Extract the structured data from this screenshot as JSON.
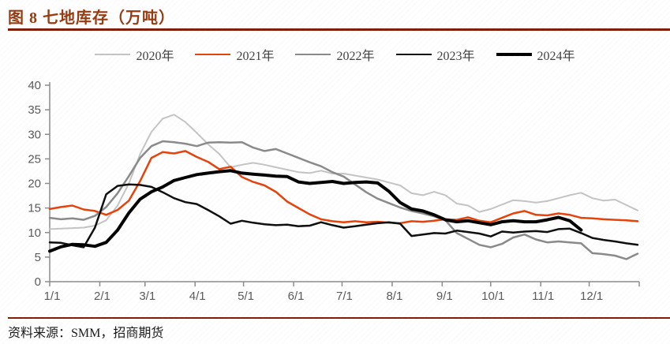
{
  "header": {
    "title": "图 8 七地库存（万吨）"
  },
  "footer": {
    "source_label": "资料来源：SMM，招商期货"
  },
  "colors": {
    "title_text": "#963a10",
    "rule": "#7f1d02",
    "axis": "#8c8c8c",
    "axis_label": "#595959",
    "series_2020": "#c4c4c4",
    "series_2021": "#e64209",
    "series_2022": "#8a8a8a",
    "series_2023": "#0d0d0d",
    "series_2024": "#000000"
  },
  "chart_data": {
    "type": "line",
    "title": "图 8 七地库存（万吨）",
    "xlabel": "",
    "ylabel": "",
    "ylim": [
      0,
      40
    ],
    "y_ticks": [
      0,
      5,
      10,
      15,
      20,
      25,
      30,
      35,
      40
    ],
    "grid": false,
    "legend_position": "top",
    "x_tick_labels": [
      "1/1",
      "2/1",
      "3/1",
      "4/1",
      "5/1",
      "6/1",
      "7/1",
      "8/1",
      "9/1",
      "10/1",
      "11/1",
      "12/1"
    ],
    "x_tick_days": [
      0,
      31,
      59,
      90,
      120,
      151,
      181,
      212,
      243,
      273,
      304,
      334
    ],
    "x_weekly_dates": [
      "1/1",
      "1/8",
      "1/15",
      "1/22",
      "1/29",
      "2/5",
      "2/12",
      "2/19",
      "2/26",
      "3/5",
      "3/12",
      "3/19",
      "3/26",
      "4/2",
      "4/9",
      "4/16",
      "4/23",
      "4/30",
      "5/7",
      "5/14",
      "5/21",
      "5/28",
      "6/4",
      "6/11",
      "6/18",
      "6/25",
      "7/2",
      "7/9",
      "7/16",
      "7/23",
      "7/30",
      "8/6",
      "8/13",
      "8/20",
      "8/27",
      "9/3",
      "9/10",
      "9/17",
      "9/24",
      "10/1",
      "10/8",
      "10/15",
      "10/22",
      "10/29",
      "11/5",
      "11/12",
      "11/19",
      "11/26",
      "12/3",
      "12/10",
      "12/17",
      "12/24",
      "12/31"
    ],
    "series": [
      {
        "name": "2020年",
        "color": "#c4c4c4",
        "line_width": 2,
        "values": [
          10.7,
          10.8,
          10.9,
          11.0,
          11.4,
          12.5,
          15.5,
          20.0,
          26.0,
          30.5,
          33.2,
          34.0,
          32.5,
          30.3,
          28.0,
          26.0,
          23.3,
          23.8,
          24.2,
          23.8,
          23.3,
          22.8,
          22.3,
          22.1,
          22.6,
          22.0,
          22.0,
          21.6,
          21.2,
          20.8,
          20.2,
          19.6,
          18.0,
          17.6,
          18.3,
          17.6,
          15.9,
          15.5,
          14.2,
          14.8,
          15.7,
          16.6,
          16.4,
          16.1,
          16.4,
          17.0,
          17.6,
          18.1,
          17.0,
          16.5,
          16.7,
          15.6,
          14.5
        ]
      },
      {
        "name": "2021年",
        "color": "#e64209",
        "line_width": 2.5,
        "values": [
          14.8,
          15.2,
          15.5,
          14.7,
          14.4,
          13.6,
          14.6,
          16.5,
          20.5,
          25.2,
          26.4,
          26.1,
          26.6,
          25.4,
          24.4,
          22.9,
          23.4,
          21.3,
          20.3,
          19.6,
          18.3,
          16.3,
          15.0,
          13.7,
          12.7,
          12.3,
          12.1,
          12.3,
          12.1,
          12.2,
          12.0,
          11.9,
          12.3,
          12.2,
          12.4,
          12.7,
          12.6,
          13.1,
          12.4,
          12.1,
          13.0,
          13.9,
          14.4,
          13.6,
          13.5,
          13.9,
          13.6,
          13.0,
          12.9,
          12.7,
          12.6,
          12.5,
          12.3
        ]
      },
      {
        "name": "2022年",
        "color": "#8a8a8a",
        "line_width": 2.5,
        "values": [
          13.0,
          12.7,
          12.9,
          12.6,
          13.4,
          15.2,
          18.0,
          21.5,
          25.2,
          27.6,
          28.6,
          28.4,
          28.1,
          27.6,
          28.3,
          28.4,
          28.3,
          28.4,
          27.3,
          26.6,
          27.0,
          26.1,
          25.2,
          24.3,
          23.5,
          22.3,
          21.4,
          19.8,
          18.2,
          16.9,
          16.0,
          15.1,
          14.4,
          13.9,
          13.3,
          12.5,
          9.9,
          8.7,
          7.5,
          7.0,
          7.7,
          9.0,
          9.6,
          8.6,
          8.0,
          8.2,
          8.0,
          7.8,
          5.8,
          5.6,
          5.3,
          4.6,
          5.7
        ]
      },
      {
        "name": "2023年",
        "color": "#0d0d0d",
        "line_width": 2.5,
        "values": [
          8.0,
          7.9,
          7.4,
          7.0,
          11.0,
          17.8,
          19.5,
          19.8,
          19.7,
          19.3,
          18.2,
          17.0,
          16.2,
          15.8,
          14.6,
          13.3,
          11.8,
          12.4,
          12.0,
          11.7,
          11.5,
          11.6,
          11.3,
          11.4,
          12.1,
          11.5,
          11.0,
          11.3,
          11.6,
          11.9,
          12.1,
          11.8,
          9.3,
          9.6,
          9.9,
          9.8,
          10.4,
          10.1,
          9.8,
          9.2,
          10.2,
          10.0,
          10.2,
          10.3,
          10.1,
          10.7,
          10.8,
          9.9,
          8.9,
          8.5,
          8.2,
          7.8,
          7.5
        ]
      },
      {
        "name": "2024年",
        "color": "#000000",
        "line_width": 4,
        "values": [
          6.2,
          7.1,
          7.6,
          7.5,
          7.2,
          8.0,
          10.5,
          14.0,
          16.8,
          18.3,
          19.3,
          20.6,
          21.2,
          21.8,
          22.1,
          22.4,
          22.6,
          22.1,
          21.9,
          21.7,
          21.5,
          21.4,
          20.3,
          20.0,
          20.2,
          20.4,
          20.0,
          20.2,
          20.3,
          20.1,
          18.4,
          16.1,
          14.8,
          14.4,
          13.6,
          12.6,
          12.2,
          12.4,
          12.0,
          11.6,
          12.2,
          12.4,
          12.2,
          12.2,
          12.6,
          13.1,
          12.4,
          10.5,
          null,
          null,
          null,
          null,
          null
        ]
      }
    ]
  }
}
